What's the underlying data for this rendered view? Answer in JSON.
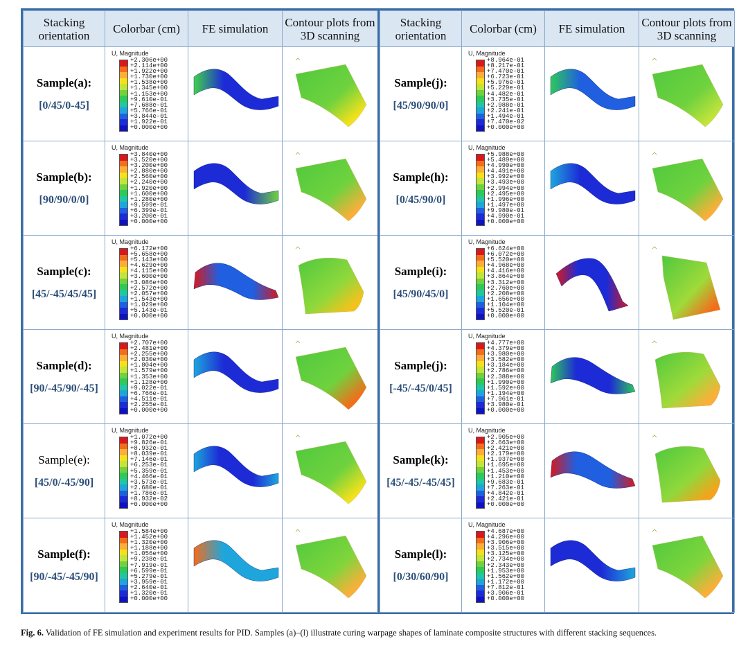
{
  "headers": {
    "stacking": "Stacking orientation",
    "colorbar": "Colorbar (cm)",
    "fe": "FE simulation",
    "scan": "Contour plots from 3D scanning"
  },
  "colorbar_title": "U, Magnitude",
  "colors": {
    "frame": "#3b6ea8",
    "header_bg": "#dbe6f3",
    "sequence_text": "#2d4f7a",
    "scale": [
      "#d7191c",
      "#f46d1b",
      "#fdae3a",
      "#f5e11b",
      "#c2e43b",
      "#6fd23e",
      "#2ec958",
      "#1fc7a4",
      "#1ea6dc",
      "#1f5fe0",
      "#1d2bd6",
      "#0f12c0"
    ]
  },
  "samples": [
    {
      "id": "a",
      "name": "Sample(a):",
      "bold": true,
      "sequence": "[0/45/0-45]",
      "ticks": [
        "+2.306e+00",
        "+2.114e+00",
        "+1.922e+00",
        "+1.730e+00",
        "+1.538e+00",
        "+1.345e+00",
        "+1.153e+00",
        "+9.610e-01",
        "+7.688e-01",
        "+5.766e-01",
        "+3.844e-01",
        "+1.922e-01",
        "+0.000e+00"
      ],
      "fe": {
        "shape": "s-curve",
        "low": "#1d2bd6",
        "high": "#3fd24a",
        "gradient": "left"
      },
      "scan": {
        "shape": "flat",
        "main": "#6fd23e",
        "corner": "#f5e11b"
      }
    },
    {
      "id": "b",
      "name": "Sample(b):",
      "bold": true,
      "sequence": "[90/90/0/0]",
      "ticks": [
        "+3.840e+00",
        "+3.520e+00",
        "+3.200e+00",
        "+2.880e+00",
        "+2.560e+00",
        "+2.240e+00",
        "+1.920e+00",
        "+1.600e+00",
        "+1.280e+00",
        "+9.599e-01",
        "+6.399e-01",
        "+3.200e-01",
        "+0.000e+00"
      ],
      "fe": {
        "shape": "s-curve",
        "low": "#1d2bd6",
        "high": "#6fd23e",
        "gradient": "right"
      },
      "scan": {
        "shape": "flat",
        "main": "#6fd23e",
        "corner": "#fdae3a"
      }
    },
    {
      "id": "c",
      "name": "Sample(c):",
      "bold": true,
      "sequence": "[45/-45/45/45]",
      "ticks": [
        "+6.172e+00",
        "+5.658e+00",
        "+5.143e+00",
        "+4.629e+00",
        "+4.115e+00",
        "+3.600e+00",
        "+3.086e+00",
        "+2.572e+00",
        "+2.057e+00",
        "+1.543e+00",
        "+1.029e+00",
        "+5.143e-01",
        "+0.000e+00"
      ],
      "fe": {
        "shape": "diag",
        "low": "#1f5fe0",
        "high": "#d7191c",
        "gradient": "both"
      },
      "scan": {
        "shape": "curve",
        "main": "#8fd83c",
        "corner": "#f5c21b"
      }
    },
    {
      "id": "d",
      "name": "Sample(d):",
      "bold": true,
      "sequence": "[90/-45/90/-45]",
      "ticks": [
        "+2.707e+00",
        "+2.481e+00",
        "+2.255e+00",
        "+2.030e+00",
        "+1.804e+00",
        "+1.579e+00",
        "+1.353e+00",
        "+1.128e+00",
        "+9.022e-01",
        "+6.766e-01",
        "+4.511e-01",
        "+2.255e-01",
        "+0.000e+00"
      ],
      "fe": {
        "shape": "s-curve",
        "low": "#1d2bd6",
        "high": "#1ea6dc",
        "gradient": "left"
      },
      "scan": {
        "shape": "flat",
        "main": "#6fd23e",
        "corner": "#f46d1b"
      }
    },
    {
      "id": "e",
      "name": "Sample(e):",
      "bold": false,
      "sequence": "[45/0/-45/90]",
      "ticks": [
        "+1.072e+00",
        "+9.826e-01",
        "+8.932e-01",
        "+8.039e-01",
        "+7.146e-01",
        "+6.253e-01",
        "+5.359e-01",
        "+4.466e-01",
        "+3.573e-01",
        "+2.680e-01",
        "+1.786e-01",
        "+8.932e-02",
        "+0.000e+00"
      ],
      "fe": {
        "shape": "s-curve",
        "low": "#1d2bd6",
        "high": "#1ea6dc",
        "gradient": "both"
      },
      "scan": {
        "shape": "flat",
        "main": "#6fd23e",
        "corner": "#f5e11b"
      }
    },
    {
      "id": "f",
      "name": "Sample(f):",
      "bold": true,
      "sequence": "[90/-45/-45/90]",
      "ticks": [
        "+1.584e+00",
        "+1.452e+00",
        "+1.320e+00",
        "+1.188e+00",
        "+1.056e+00",
        "+9.238e-01",
        "+7.919e-01",
        "+6.599e-01",
        "+5.279e-01",
        "+3.959e-01",
        "+2.640e-01",
        "+1.320e-01",
        "+0.000e+00"
      ],
      "fe": {
        "shape": "s-curve",
        "low": "#1ea6dc",
        "high": "#f46d1b",
        "gradient": "left"
      },
      "scan": {
        "shape": "flat",
        "main": "#7fd53c",
        "corner": "#fdae3a"
      }
    },
    {
      "id": "j1",
      "name": "Sample(j):",
      "bold": true,
      "sequence": "[45/90/90/0]",
      "ticks": [
        "+8.964e-01",
        "+8.217e-01",
        "+7.470e-01",
        "+6.723e-01",
        "+5.976e-01",
        "+5.229e-01",
        "+4.482e-01",
        "+3.735e-01",
        "+2.988e-01",
        "+2.241e-01",
        "+1.494e-01",
        "+7.470e-02",
        "+0.000e+00"
      ],
      "fe": {
        "shape": "s-curve",
        "low": "#1f5fe0",
        "high": "#2ec958",
        "gradient": "left"
      },
      "scan": {
        "shape": "flat",
        "main": "#6fd23e",
        "corner": "#c2e43b"
      }
    },
    {
      "id": "h",
      "name": "Sample(h):",
      "bold": true,
      "sequence": "[0/45/90/0]",
      "ticks": [
        "+5.988e+00",
        "+5.489e+00",
        "+4.990e+00",
        "+4.491e+00",
        "+3.992e+00",
        "+3.493e+00",
        "+2.994e+00",
        "+2.495e+00",
        "+1.996e+00",
        "+1.497e+00",
        "+9.980e-01",
        "+4.990e-01",
        "+0.000e+00"
      ],
      "fe": {
        "shape": "s-curve",
        "low": "#1d2bd6",
        "high": "#1ea6dc",
        "gradient": "left"
      },
      "scan": {
        "shape": "flat",
        "main": "#6fd23e",
        "corner": "#fdae3a"
      }
    },
    {
      "id": "i",
      "name": "Sample(i):",
      "bold": true,
      "sequence": "[45/90/45/0]",
      "ticks": [
        "+6.624e+00",
        "+6.072e+00",
        "+5.520e+00",
        "+4.968e+00",
        "+4.416e+00",
        "+3.864e+00",
        "+3.312e+00",
        "+2.760e+00",
        "+2.208e+00",
        "+1.656e+00",
        "+1.104e+00",
        "+5.520e-01",
        "+0.000e+00"
      ],
      "fe": {
        "shape": "peak",
        "low": "#1d2bd6",
        "high": "#d7191c",
        "gradient": "both"
      },
      "scan": {
        "shape": "tall",
        "main": "#9fda3a",
        "corner": "#f46d1b"
      }
    },
    {
      "id": "j2",
      "name": "Sample(j):",
      "bold": true,
      "sequence": "[-45/-45/0/45]",
      "ticks": [
        "+4.777e+00",
        "+4.379e+00",
        "+3.980e+00",
        "+3.582e+00",
        "+3.184e+00",
        "+2.786e+00",
        "+2.388e+00",
        "+1.990e+00",
        "+1.592e+00",
        "+1.194e+00",
        "+7.961e-01",
        "+3.980e-01",
        "+0.000e+00"
      ],
      "fe": {
        "shape": "diag",
        "low": "#1d2bd6",
        "high": "#2ec958",
        "gradient": "both"
      },
      "scan": {
        "shape": "curve",
        "main": "#9fda3a",
        "corner": "#fdae3a"
      }
    },
    {
      "id": "k",
      "name": "Sample(k):",
      "bold": true,
      "sequence": "[45/-45/-45/45]",
      "ticks": [
        "+2.905e+00",
        "+2.663e+00",
        "+2.421e+00",
        "+2.179e+00",
        "+1.937e+00",
        "+1.695e+00",
        "+1.453e+00",
        "+1.210e+00",
        "+9.683e-01",
        "+7.263e-01",
        "+4.842e-01",
        "+2.421e-01",
        "+0.000e+00"
      ],
      "fe": {
        "shape": "diag",
        "low": "#1f5fe0",
        "high": "#d7191c",
        "gradient": "both"
      },
      "scan": {
        "shape": "curve",
        "main": "#8fd83c",
        "corner": "#f5a31b"
      }
    },
    {
      "id": "l",
      "name": "Sample(l):",
      "bold": true,
      "sequence": "[0/30/60/90]",
      "ticks": [
        "+4.687e+00",
        "+4.296e+00",
        "+3.906e+00",
        "+3.515e+00",
        "+3.125e+00",
        "+2.734e+00",
        "+2.343e+00",
        "+1.953e+00",
        "+1.562e+00",
        "+1.172e+00",
        "+7.812e-01",
        "+3.906e-01",
        "+0.000e+00"
      ],
      "fe": {
        "shape": "s-curve",
        "low": "#1d2bd6",
        "high": "#1ea6dc",
        "gradient": "right"
      },
      "scan": {
        "shape": "flat",
        "main": "#7fd53c",
        "corner": "#fdae3a"
      }
    }
  ],
  "caption": {
    "label": "Fig. 6.",
    "text": " Validation of FE simulation and experiment results for PID. Samples (a)–(l) illustrate curing warpage shapes of laminate composite structures with different stacking sequences."
  }
}
